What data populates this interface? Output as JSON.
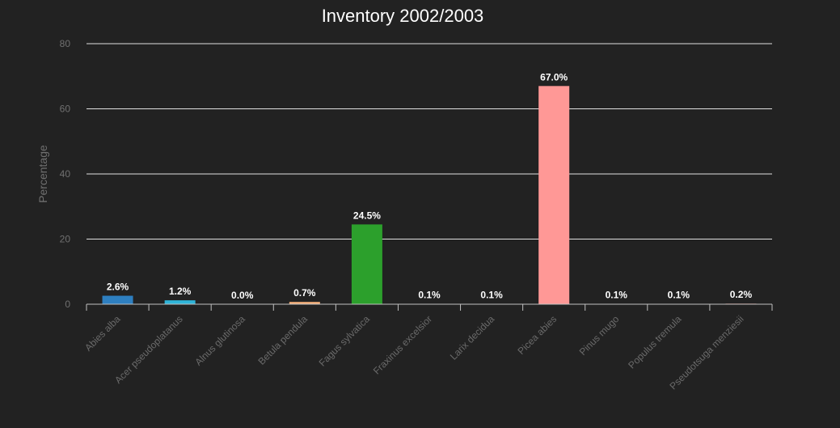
{
  "chart_data": {
    "type": "bar",
    "title": "Inventory 2002/2003",
    "xlabel": "",
    "ylabel": "Percentage",
    "ylim": [
      0,
      80
    ],
    "yticks": [
      "0",
      "20",
      "40",
      "60",
      "80"
    ],
    "grid": true,
    "legend": "none",
    "categories": [
      "Abies alba",
      "Acer pseudoplatanus",
      "Alnus glutinosa",
      "Betula pendula",
      "Fagus sylvatica",
      "Fraxinus excelsior",
      "Larix decidua",
      "Picea abies",
      "Pinus mugo",
      "Populus tremula",
      "Pseudotsuga menziesii"
    ],
    "values": [
      2.6,
      1.2,
      0.0,
      0.7,
      24.5,
      0.1,
      0.1,
      67.0,
      0.1,
      0.1,
      0.2
    ],
    "data_labels": [
      "2.6%",
      "1.2%",
      "0.0%",
      "0.7%",
      "24.5%",
      "0.1%",
      "0.1%",
      "67.0%",
      "0.1%",
      "0.1%",
      "0.2%"
    ],
    "colors": [
      "#2e7fc0",
      "#2fb4d8",
      "#c8c8c8",
      "#f5b07a",
      "#2ca02c",
      "#9ed99a",
      "#d62728",
      "#ff9896",
      "#9467bd",
      "#c5b0d5",
      "#8c564b"
    ]
  }
}
